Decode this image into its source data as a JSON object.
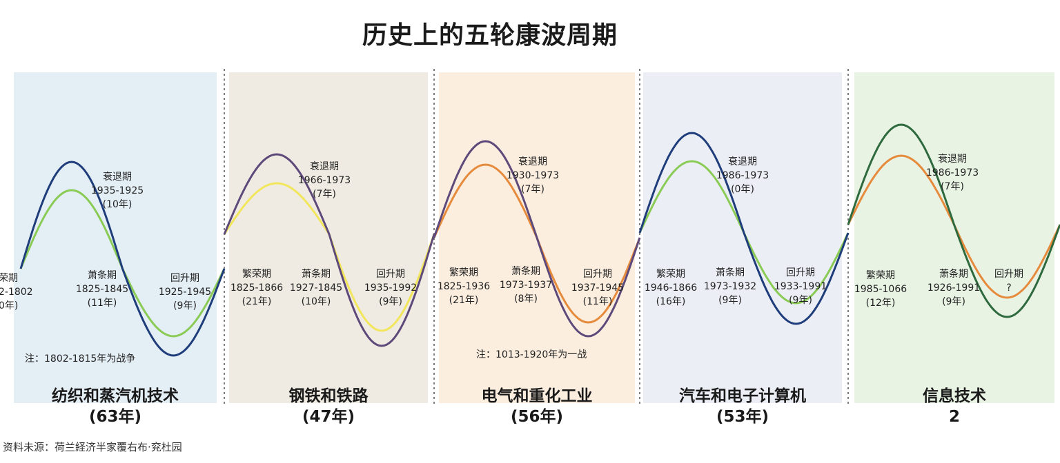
{
  "title": "历史上的五轮康波周期",
  "source": "资料未源：荷兰経济半家覆右布·兖杜园",
  "colors": {
    "panel_fills": [
      "#e4eef5",
      "#efebe2",
      "#fbeedf",
      "#eceef6",
      "#e8f3e4"
    ],
    "dark_curves": [
      "#1f3d7a",
      "#5e4a7a",
      "#5e4a7a",
      "#1f3d7a",
      "#2f6a3e"
    ],
    "light_curves": [
      "#8acb55",
      "#f1e65c",
      "#e68a3c",
      "#8acb55",
      "#e68a3c"
    ],
    "divider": "#555555"
  },
  "eras": [
    {
      "name": "纺织和蒸汽机技术",
      "years": "(63年)"
    },
    {
      "name": "钢铁和铁路",
      "years": "(47年)"
    },
    {
      "name": "电气和重化工业",
      "years": "(56年)"
    },
    {
      "name": "汽车和电子计算机",
      "years": "(53年)"
    },
    {
      "name": "信息技术",
      "years": "2"
    }
  ],
  "notes": [
    "注：1802-1815年为战争",
    "注：1013-1920年为一战"
  ],
  "annotations": [
    {
      "lines": [
        "荣期",
        "2-1802",
        "0年)"
      ]
    },
    {
      "lines": [
        "衰退期",
        "1935-1925",
        "(10年)"
      ]
    },
    {
      "lines": [
        "萧条期",
        "1825-1845",
        "(11年)"
      ]
    },
    {
      "lines": [
        "回升期",
        "1925-1945",
        "(9年)"
      ]
    },
    {
      "lines": [
        "繁荣期",
        "1825-1866",
        "(21年)"
      ]
    },
    {
      "lines": [
        "衰退期",
        "1966-1973",
        "(7年)"
      ]
    },
    {
      "lines": [
        "萧条期",
        "1927-1845",
        "(10年)"
      ]
    },
    {
      "lines": [
        "回升期",
        "1935-1992",
        "(9年)"
      ]
    },
    {
      "lines": [
        "繁荣期",
        "1825-1936",
        "(21年)"
      ]
    },
    {
      "lines": [
        "衰退期",
        "1930-1973",
        "(7年)"
      ]
    },
    {
      "lines": [
        "萧条期",
        "1973-1937",
        "(8年)"
      ]
    },
    {
      "lines": [
        "回升期",
        "1937-1945",
        "(11年)"
      ]
    },
    {
      "lines": [
        "繁荣期",
        "1946-1866",
        "(16年)"
      ]
    },
    {
      "lines": [
        "衰退期",
        "1986-1973",
        "(0年)"
      ]
    },
    {
      "lines": [
        "萧条期",
        "1973-1932",
        "(9年)"
      ]
    },
    {
      "lines": [
        "回升期",
        "1933-1991",
        "(9年)"
      ]
    },
    {
      "lines": [
        "繁荣期",
        "1985-1066",
        "(12年)"
      ]
    },
    {
      "lines": [
        "衰退期",
        "1986-1973",
        "(7年)"
      ]
    },
    {
      "lines": [
        "萧条期",
        "1926-1991",
        "(9年)"
      ]
    },
    {
      "lines": [
        "回升期",
        "?"
      ]
    }
  ],
  "chart_data": {
    "type": "line",
    "title": "历史上的五轮康波周期",
    "categories": [
      "纺织和蒸汽机技术",
      "钢铁和铁路",
      "电气和重化工业",
      "汽车和电子计算机",
      "信息技术"
    ],
    "cycle_lengths": [
      "63年",
      "47年",
      "56年",
      "53年",
      "2"
    ],
    "phases": [
      "繁荣期",
      "衰退期",
      "萧条期",
      "回升期"
    ],
    "grid": false,
    "legend": "none"
  }
}
